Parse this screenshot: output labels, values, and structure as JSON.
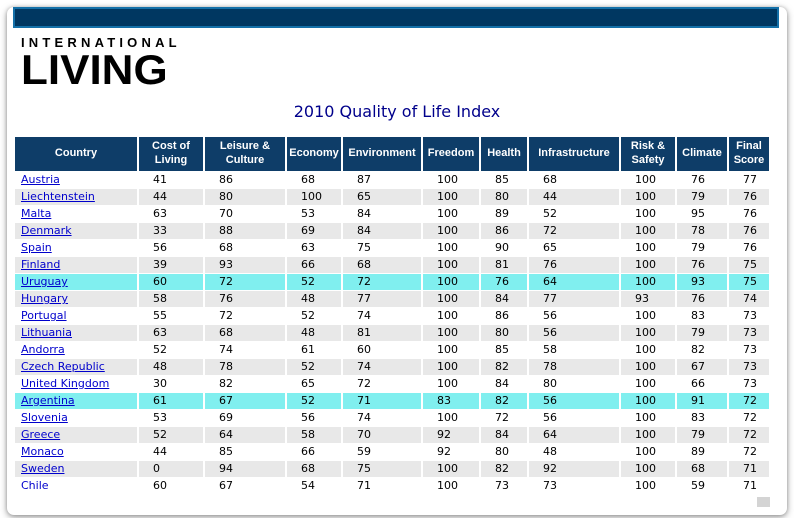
{
  "header": {
    "logo_line1": "INTERNATIONAL",
    "logo_line2": "LIVING",
    "title": "2010 Quality of Life Index"
  },
  "colors": {
    "topbar_fill": "#003761",
    "topbar_border": "#1470A8",
    "header_bg": "#0E3D68",
    "row_alt_bg": "#E8E8E8",
    "highlight_bg": "#80EFEF",
    "title_color": "#00008B",
    "link_color": "#0000CC"
  },
  "table": {
    "columns": [
      "Country",
      "Cost of Living",
      "Leisure & Culture",
      "Economy",
      "Environment",
      "Freedom",
      "Health",
      "Infrastructure",
      "Risk & Safety",
      "Climate",
      "Final Score"
    ],
    "rows": [
      {
        "country": "Austria",
        "link": true,
        "highlight": false,
        "values": [
          41,
          86,
          68,
          87,
          100,
          85,
          68,
          100,
          76,
          77
        ]
      },
      {
        "country": "Liechtenstein",
        "link": true,
        "highlight": false,
        "values": [
          44,
          80,
          100,
          65,
          100,
          80,
          44,
          100,
          79,
          76
        ]
      },
      {
        "country": "Malta",
        "link": true,
        "highlight": false,
        "values": [
          63,
          70,
          53,
          84,
          100,
          89,
          52,
          100,
          95,
          76
        ]
      },
      {
        "country": "Denmark",
        "link": true,
        "highlight": false,
        "values": [
          33,
          88,
          69,
          84,
          100,
          86,
          72,
          100,
          78,
          76
        ]
      },
      {
        "country": "Spain",
        "link": true,
        "highlight": false,
        "values": [
          56,
          68,
          63,
          75,
          100,
          90,
          65,
          100,
          79,
          76
        ]
      },
      {
        "country": "Finland",
        "link": true,
        "highlight": false,
        "values": [
          39,
          93,
          66,
          68,
          100,
          81,
          76,
          100,
          76,
          75
        ]
      },
      {
        "country": "Uruguay",
        "link": true,
        "highlight": true,
        "values": [
          60,
          72,
          52,
          72,
          100,
          76,
          64,
          100,
          93,
          75
        ]
      },
      {
        "country": "Hungary",
        "link": true,
        "highlight": false,
        "values": [
          58,
          76,
          48,
          77,
          100,
          84,
          77,
          93,
          76,
          74
        ]
      },
      {
        "country": "Portugal",
        "link": true,
        "highlight": false,
        "values": [
          55,
          72,
          52,
          74,
          100,
          86,
          56,
          100,
          83,
          73
        ]
      },
      {
        "country": "Lithuania",
        "link": true,
        "highlight": false,
        "values": [
          63,
          68,
          48,
          81,
          100,
          80,
          56,
          100,
          79,
          73
        ]
      },
      {
        "country": "Andorra",
        "link": true,
        "highlight": false,
        "values": [
          52,
          74,
          61,
          60,
          100,
          85,
          58,
          100,
          82,
          73
        ]
      },
      {
        "country": "Czech Republic",
        "link": true,
        "highlight": false,
        "values": [
          48,
          78,
          52,
          74,
          100,
          82,
          78,
          100,
          67,
          73
        ]
      },
      {
        "country": "United Kingdom",
        "link": true,
        "highlight": false,
        "values": [
          30,
          82,
          65,
          72,
          100,
          84,
          80,
          100,
          66,
          73
        ]
      },
      {
        "country": "Argentina",
        "link": true,
        "highlight": true,
        "values": [
          61,
          67,
          52,
          71,
          83,
          82,
          56,
          100,
          91,
          72
        ]
      },
      {
        "country": "Slovenia",
        "link": true,
        "highlight": false,
        "values": [
          53,
          69,
          56,
          74,
          100,
          72,
          56,
          100,
          83,
          72
        ]
      },
      {
        "country": "Greece",
        "link": true,
        "highlight": false,
        "values": [
          52,
          64,
          58,
          70,
          92,
          84,
          64,
          100,
          79,
          72
        ]
      },
      {
        "country": "Monaco",
        "link": true,
        "highlight": false,
        "values": [
          44,
          85,
          66,
          59,
          92,
          80,
          48,
          100,
          89,
          72
        ]
      },
      {
        "country": "Sweden",
        "link": true,
        "highlight": false,
        "values": [
          0,
          94,
          68,
          75,
          100,
          82,
          92,
          100,
          68,
          71
        ]
      },
      {
        "country": "Chile",
        "link": false,
        "highlight": false,
        "values": [
          60,
          67,
          54,
          71,
          100,
          73,
          73,
          100,
          59,
          71
        ]
      }
    ]
  }
}
